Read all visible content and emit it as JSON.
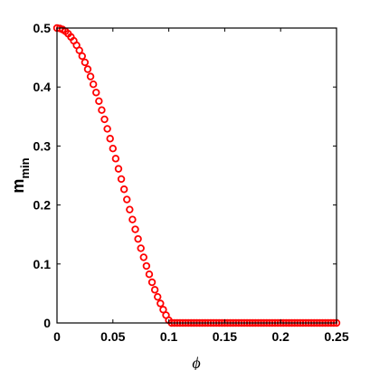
{
  "chart_data": {
    "type": "scatter",
    "title": "",
    "xlabel": "ϕ",
    "ylabel_main": "m",
    "ylabel_sub": "min",
    "xlim": [
      0,
      0.25
    ],
    "ylim": [
      0,
      0.5
    ],
    "xticks": [
      0,
      0.05,
      0.1,
      0.15,
      0.2,
      0.25
    ],
    "xtick_labels": [
      "0",
      "0.05",
      "0.1",
      "0.15",
      "0.2",
      "0.25"
    ],
    "yticks": [
      0,
      0.1,
      0.2,
      0.3,
      0.4,
      0.5
    ],
    "ytick_labels": [
      "0",
      "0.1",
      "0.2",
      "0.3",
      "0.4",
      "0.5"
    ],
    "grid": false,
    "marker": "circle-open",
    "color": "#ff0000",
    "x": [
      0,
      0.0025,
      0.005,
      0.0075,
      0.01,
      0.0125,
      0.015,
      0.0175,
      0.02,
      0.0225,
      0.025,
      0.0275,
      0.03,
      0.0325,
      0.035,
      0.0375,
      0.04,
      0.0425,
      0.045,
      0.0475,
      0.05,
      0.0525,
      0.055,
      0.0575,
      0.06,
      0.0625,
      0.065,
      0.0675,
      0.07,
      0.0725,
      0.075,
      0.0775,
      0.08,
      0.0825,
      0.085,
      0.0875,
      0.09,
      0.0925,
      0.095,
      0.0975,
      0.1,
      0.1025,
      0.105,
      0.1075,
      0.11,
      0.1125,
      0.115,
      0.1175,
      0.12,
      0.1225,
      0.125,
      0.1275,
      0.13,
      0.1325,
      0.135,
      0.1375,
      0.14,
      0.1425,
      0.145,
      0.1475,
      0.15,
      0.1525,
      0.155,
      0.1575,
      0.16,
      0.1625,
      0.165,
      0.1675,
      0.17,
      0.1725,
      0.175,
      0.1775,
      0.18,
      0.1825,
      0.185,
      0.1875,
      0.19,
      0.1925,
      0.195,
      0.1975,
      0.2,
      0.2025,
      0.205,
      0.2075,
      0.21,
      0.2125,
      0.215,
      0.2175,
      0.22,
      0.2225,
      0.225,
      0.2275,
      0.23,
      0.2325,
      0.235,
      0.2375,
      0.24,
      0.2425,
      0.245,
      0.2475,
      0.25
    ],
    "y": [
      0.5,
      0.4994,
      0.4975,
      0.4945,
      0.4903,
      0.4849,
      0.4784,
      0.4708,
      0.4621,
      0.4524,
      0.4418,
      0.4302,
      0.4178,
      0.4046,
      0.3907,
      0.3761,
      0.3609,
      0.3452,
      0.3291,
      0.3125,
      0.2957,
      0.2786,
      0.2613,
      0.244,
      0.2266,
      0.2093,
      0.1922,
      0.1753,
      0.1587,
      0.1424,
      0.1266,
      0.1113,
      0.0966,
      0.0825,
      0.069,
      0.0562,
      0.0442,
      0.033,
      0.0226,
      0.0131,
      0.0045,
      0.0,
      0.0,
      0.0,
      0.0,
      0.0,
      0.0,
      0.0,
      0.0,
      0.0,
      0.0,
      0.0,
      0.0,
      0.0,
      0.0,
      0.0,
      0.0,
      0.0,
      0.0,
      0.0,
      0.0,
      0.0,
      0.0,
      0.0,
      0.0,
      0.0,
      0.0,
      0.0,
      0.0,
      0.0,
      0.0,
      0.0,
      0.0,
      0.0,
      0.0,
      0.0,
      0.0,
      0.0,
      0.0,
      0.0,
      0.0,
      0.0,
      0.0,
      0.0,
      0.0,
      0.0,
      0.0,
      0.0,
      0.0,
      0.0,
      0.0,
      0.0,
      0.0,
      0.0,
      0.0,
      0.0,
      0.0,
      0.0,
      0.0,
      0.0,
      0.0
    ]
  }
}
